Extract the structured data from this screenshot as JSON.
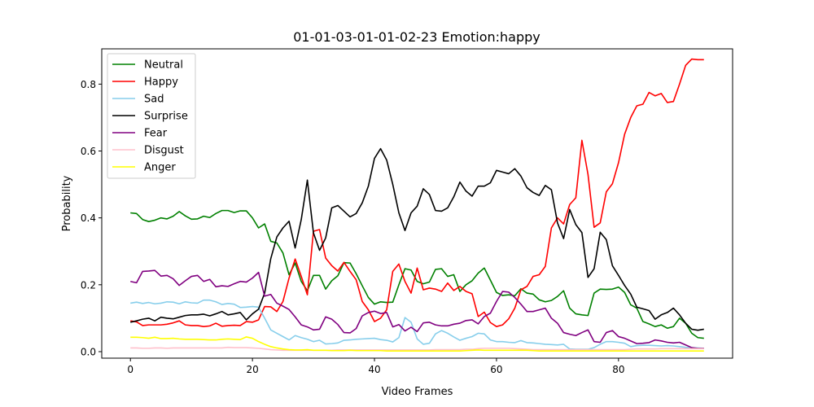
{
  "chart_data": {
    "type": "line",
    "title": "01-01-03-01-01-02-23 Emotion:happy",
    "xlabel": "Video Frames",
    "ylabel": "Probability",
    "xlim": [
      -4.7,
      98.7
    ],
    "ylim": [
      -0.0195,
      0.9055
    ],
    "xticks": [
      0,
      20,
      40,
      60,
      80
    ],
    "yticks": [
      0.0,
      0.2,
      0.4,
      0.6,
      0.8
    ],
    "ytick_labels": [
      "0.0",
      "0.2",
      "0.4",
      "0.6",
      "0.8"
    ],
    "grid": false,
    "legend_position": "upper-left",
    "x": [
      0,
      1,
      2,
      3,
      4,
      5,
      6,
      7,
      8,
      9,
      10,
      11,
      12,
      13,
      14,
      15,
      16,
      17,
      18,
      19,
      20,
      21,
      22,
      23,
      24,
      25,
      26,
      27,
      28,
      29,
      30,
      31,
      32,
      33,
      34,
      35,
      36,
      37,
      38,
      39,
      40,
      41,
      42,
      43,
      44,
      45,
      46,
      47,
      48,
      49,
      50,
      51,
      52,
      53,
      54,
      55,
      56,
      57,
      58,
      59,
      60,
      61,
      62,
      63,
      64,
      65,
      66,
      67,
      68,
      69,
      70,
      71,
      72,
      73,
      74,
      75,
      76,
      77,
      78,
      79,
      80,
      81,
      82,
      83,
      84,
      85,
      86,
      87,
      88,
      89,
      90,
      91,
      92,
      93,
      94
    ],
    "series": [
      {
        "name": "Neutral",
        "color": "#008000",
        "values": [
          0.415,
          0.413,
          0.395,
          0.389,
          0.393,
          0.4,
          0.397,
          0.405,
          0.419,
          0.406,
          0.396,
          0.397,
          0.405,
          0.401,
          0.413,
          0.422,
          0.422,
          0.416,
          0.421,
          0.421,
          0.4,
          0.37,
          0.382,
          0.33,
          0.325,
          0.295,
          0.23,
          0.265,
          0.21,
          0.182,
          0.228,
          0.228,
          0.187,
          0.212,
          0.227,
          0.266,
          0.265,
          0.233,
          0.197,
          0.162,
          0.142,
          0.149,
          0.147,
          0.148,
          0.2,
          0.248,
          0.244,
          0.21,
          0.203,
          0.208,
          0.246,
          0.248,
          0.225,
          0.23,
          0.18,
          0.2,
          0.212,
          0.235,
          0.25,
          0.214,
          0.177,
          0.168,
          0.17,
          0.167,
          0.188,
          0.175,
          0.172,
          0.155,
          0.149,
          0.153,
          0.165,
          0.182,
          0.13,
          0.113,
          0.11,
          0.108,
          0.175,
          0.187,
          0.186,
          0.187,
          0.193,
          0.177,
          0.14,
          0.13,
          0.09,
          0.083,
          0.075,
          0.08,
          0.07,
          0.075,
          0.1,
          0.085,
          0.055,
          0.042,
          0.04
        ]
      },
      {
        "name": "Happy",
        "color": "#ff0000",
        "values": [
          0.092,
          0.089,
          0.078,
          0.08,
          0.08,
          0.08,
          0.082,
          0.086,
          0.092,
          0.08,
          0.078,
          0.078,
          0.075,
          0.077,
          0.085,
          0.076,
          0.078,
          0.079,
          0.078,
          0.09,
          0.088,
          0.095,
          0.135,
          0.134,
          0.12,
          0.15,
          0.22,
          0.277,
          0.225,
          0.17,
          0.36,
          0.365,
          0.28,
          0.257,
          0.241,
          0.267,
          0.24,
          0.215,
          0.15,
          0.125,
          0.09,
          0.1,
          0.125,
          0.24,
          0.262,
          0.21,
          0.175,
          0.25,
          0.185,
          0.19,
          0.187,
          0.18,
          0.205,
          0.183,
          0.195,
          0.18,
          0.173,
          0.105,
          0.118,
          0.087,
          0.075,
          0.08,
          0.098,
          0.13,
          0.185,
          0.195,
          0.225,
          0.23,
          0.255,
          0.37,
          0.4,
          0.382,
          0.44,
          0.46,
          0.632,
          0.53,
          0.372,
          0.385,
          0.478,
          0.502,
          0.565,
          0.65,
          0.7,
          0.735,
          0.74,
          0.775,
          0.765,
          0.772,
          0.745,
          0.748,
          0.8,
          0.856,
          0.875,
          0.873,
          0.873
        ]
      },
      {
        "name": "Sad",
        "color": "#87ceeb",
        "values": [
          0.145,
          0.148,
          0.144,
          0.147,
          0.143,
          0.145,
          0.149,
          0.148,
          0.143,
          0.149,
          0.146,
          0.145,
          0.154,
          0.154,
          0.149,
          0.141,
          0.144,
          0.142,
          0.132,
          0.133,
          0.135,
          0.133,
          0.1,
          0.065,
          0.055,
          0.045,
          0.035,
          0.048,
          0.042,
          0.037,
          0.03,
          0.034,
          0.023,
          0.024,
          0.026,
          0.034,
          0.035,
          0.037,
          0.038,
          0.039,
          0.04,
          0.036,
          0.034,
          0.029,
          0.042,
          0.102,
          0.088,
          0.038,
          0.022,
          0.025,
          0.053,
          0.063,
          0.055,
          0.044,
          0.034,
          0.04,
          0.045,
          0.055,
          0.053,
          0.035,
          0.03,
          0.03,
          0.028,
          0.027,
          0.033,
          0.027,
          0.026,
          0.024,
          0.022,
          0.021,
          0.02,
          0.022,
          0.008,
          0.007,
          0.007,
          0.007,
          0.012,
          0.022,
          0.03,
          0.03,
          0.028,
          0.025,
          0.015,
          0.018,
          0.019,
          0.019,
          0.018,
          0.017,
          0.018,
          0.017,
          0.015,
          0.013,
          0.012,
          0.011,
          0.01
        ]
      },
      {
        "name": "Surprise",
        "color": "#000000",
        "values": [
          0.088,
          0.092,
          0.097,
          0.1,
          0.092,
          0.103,
          0.1,
          0.098,
          0.103,
          0.108,
          0.11,
          0.11,
          0.112,
          0.107,
          0.113,
          0.12,
          0.11,
          0.113,
          0.117,
          0.095,
          0.113,
          0.127,
          0.175,
          0.278,
          0.343,
          0.37,
          0.39,
          0.31,
          0.395,
          0.513,
          0.355,
          0.303,
          0.34,
          0.43,
          0.437,
          0.42,
          0.403,
          0.413,
          0.445,
          0.495,
          0.578,
          0.607,
          0.573,
          0.5,
          0.415,
          0.362,
          0.415,
          0.435,
          0.487,
          0.47,
          0.422,
          0.42,
          0.43,
          0.463,
          0.507,
          0.48,
          0.465,
          0.495,
          0.495,
          0.505,
          0.542,
          0.537,
          0.532,
          0.547,
          0.525,
          0.49,
          0.476,
          0.467,
          0.497,
          0.484,
          0.385,
          0.338,
          0.425,
          0.38,
          0.356,
          0.222,
          0.248,
          0.357,
          0.335,
          0.257,
          0.228,
          0.198,
          0.172,
          0.133,
          0.128,
          0.123,
          0.097,
          0.11,
          0.117,
          0.13,
          0.11,
          0.085,
          0.067,
          0.064,
          0.067
        ]
      },
      {
        "name": "Fear",
        "color": "#800080",
        "values": [
          0.21,
          0.206,
          0.24,
          0.241,
          0.243,
          0.226,
          0.228,
          0.218,
          0.198,
          0.212,
          0.225,
          0.228,
          0.21,
          0.216,
          0.194,
          0.197,
          0.195,
          0.203,
          0.21,
          0.208,
          0.22,
          0.237,
          0.166,
          0.171,
          0.145,
          0.136,
          0.126,
          0.104,
          0.08,
          0.074,
          0.065,
          0.067,
          0.104,
          0.097,
          0.081,
          0.057,
          0.056,
          0.069,
          0.107,
          0.117,
          0.121,
          0.114,
          0.117,
          0.074,
          0.081,
          0.062,
          0.073,
          0.06,
          0.086,
          0.088,
          0.08,
          0.077,
          0.077,
          0.082,
          0.085,
          0.093,
          0.095,
          0.083,
          0.105,
          0.115,
          0.15,
          0.18,
          0.178,
          0.162,
          0.142,
          0.12,
          0.12,
          0.125,
          0.13,
          0.1,
          0.085,
          0.057,
          0.052,
          0.048,
          0.057,
          0.065,
          0.03,
          0.028,
          0.057,
          0.063,
          0.045,
          0.04,
          0.032,
          0.024,
          0.025,
          0.027,
          0.035,
          0.032,
          0.028,
          0.026,
          0.028,
          0.02,
          0.012,
          0.01,
          0.01
        ]
      },
      {
        "name": "Disgust",
        "color": "#ffc0cb",
        "values": [
          0.011,
          0.011,
          0.01,
          0.01,
          0.011,
          0.011,
          0.01,
          0.011,
          0.011,
          0.011,
          0.011,
          0.011,
          0.011,
          0.011,
          0.011,
          0.011,
          0.013,
          0.012,
          0.012,
          0.012,
          0.011,
          0.01,
          0.008,
          0.006,
          0.005,
          0.004,
          0.004,
          0.004,
          0.004,
          0.004,
          0.004,
          0.004,
          0.004,
          0.004,
          0.005,
          0.005,
          0.005,
          0.005,
          0.005,
          0.005,
          0.005,
          0.005,
          0.005,
          0.005,
          0.005,
          0.005,
          0.005,
          0.005,
          0.005,
          0.005,
          0.006,
          0.006,
          0.006,
          0.006,
          0.006,
          0.007,
          0.007,
          0.009,
          0.01,
          0.01,
          0.01,
          0.01,
          0.01,
          0.009,
          0.008,
          0.007,
          0.006,
          0.006,
          0.006,
          0.006,
          0.006,
          0.006,
          0.006,
          0.006,
          0.006,
          0.006,
          0.006,
          0.006,
          0.006,
          0.006,
          0.006,
          0.006,
          0.007,
          0.008,
          0.008,
          0.008,
          0.008,
          0.009,
          0.009,
          0.009,
          0.009,
          0.009,
          0.009,
          0.009,
          0.009
        ]
      },
      {
        "name": "Anger",
        "color": "#ffff00",
        "values": [
          0.043,
          0.043,
          0.042,
          0.04,
          0.043,
          0.039,
          0.039,
          0.04,
          0.038,
          0.037,
          0.037,
          0.037,
          0.036,
          0.035,
          0.035,
          0.037,
          0.038,
          0.037,
          0.036,
          0.044,
          0.04,
          0.03,
          0.022,
          0.015,
          0.011,
          0.008,
          0.006,
          0.005,
          0.005,
          0.006,
          0.004,
          0.004,
          0.004,
          0.003,
          0.003,
          0.003,
          0.004,
          0.003,
          0.003,
          0.003,
          0.003,
          0.003,
          0.002,
          0.002,
          0.002,
          0.002,
          0.002,
          0.002,
          0.002,
          0.002,
          0.002,
          0.002,
          0.002,
          0.002,
          0.002,
          0.003,
          0.004,
          0.005,
          0.004,
          0.004,
          0.004,
          0.004,
          0.004,
          0.004,
          0.004,
          0.004,
          0.003,
          0.002,
          0.002,
          0.002,
          0.002,
          0.002,
          0.002,
          0.002,
          0.002,
          0.002,
          0.002,
          0.002,
          0.002,
          0.002,
          0.002,
          0.002,
          0.002,
          0.002,
          0.002,
          0.002,
          0.002,
          0.002,
          0.002,
          0.002,
          0.002,
          0.002,
          0.002,
          0.002,
          0.002
        ]
      }
    ]
  }
}
